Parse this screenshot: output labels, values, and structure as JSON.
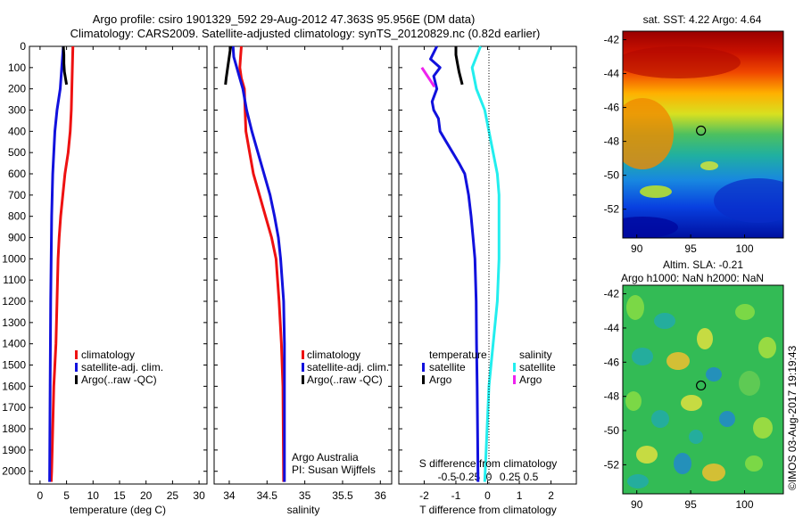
{
  "header": {
    "title_line1": "Argo profile: csiro 1901329_592 29-Aug-2012 47.363S 95.956E (DM data)",
    "title_line2": "Climatology: CARS2009. Satellite-adjusted climatology: synTS_20120829.nc (0.82d earlier)"
  },
  "colors": {
    "climatology": "#ee1111",
    "satellite": "#1111dd",
    "argo": "#000000",
    "satellite_salinity": "#22eeee",
    "argo_salinity": "#ee22ee"
  },
  "chart_data": [
    {
      "type": "line",
      "panel": "temperature",
      "xlabel": "temperature (deg C)",
      "xlim": [
        -2,
        31.5
      ],
      "xticks": [
        0,
        5,
        10,
        15,
        20,
        25,
        30
      ],
      "ylim": [
        0,
        2060
      ],
      "yticks": [
        0,
        100,
        200,
        300,
        400,
        500,
        600,
        700,
        800,
        900,
        1000,
        1100,
        1200,
        1300,
        1400,
        1500,
        1600,
        1700,
        1800,
        1900,
        2000
      ],
      "legend": [
        "climatology",
        "satellite-adj. clim.",
        "Argo(..raw -QC)"
      ],
      "series": [
        {
          "name": "climatology",
          "x": [
            6.2,
            6.1,
            6.0,
            5.9,
            5.7,
            5.3,
            4.7,
            4.3,
            3.9,
            3.6,
            3.4,
            3.2,
            3.0,
            2.8,
            2.6,
            2.4,
            2.2,
            2.1
          ],
          "y": [
            0,
            100,
            200,
            300,
            400,
            500,
            600,
            700,
            800,
            900,
            1000,
            1200,
            1400,
            1500,
            1600,
            1800,
            2000,
            2050
          ]
        },
        {
          "name": "satellite-adj. clim.",
          "x": [
            4.4,
            4.1,
            3.8,
            3.2,
            2.8,
            2.4,
            2.2,
            2.0,
            1.9,
            1.8
          ],
          "y": [
            0,
            100,
            200,
            300,
            400,
            600,
            800,
            1200,
            1600,
            2050
          ]
        },
        {
          "name": "Argo(..raw -QC)",
          "x": [
            4.4,
            4.5,
            4.5,
            4.6,
            4.8,
            5.0
          ],
          "y": [
            0,
            40,
            80,
            120,
            150,
            180
          ]
        }
      ]
    },
    {
      "type": "line",
      "panel": "salinity",
      "xlabel": "salinity",
      "xlim": [
        33.8,
        36.15
      ],
      "xticks": [
        34,
        34.5,
        35,
        35.5,
        36
      ],
      "xtick_labels": [
        "34",
        "34.5",
        "35",
        "35.5",
        "36"
      ],
      "ylim": [
        0,
        2060
      ],
      "legend": [
        "climatology",
        "satellite-adj. clim.",
        "Argo(..raw -QC)"
      ],
      "annotation": [
        "Argo Australia",
        "PI: Susan Wijffels"
      ],
      "series": [
        {
          "name": "climatology",
          "x": [
            34.16,
            34.15,
            34.14,
            34.16,
            34.2,
            34.21,
            34.22,
            34.27,
            34.32,
            34.4,
            34.48,
            34.56,
            34.62,
            34.66,
            34.69,
            34.71,
            34.72
          ],
          "y": [
            0,
            50,
            100,
            150,
            200,
            300,
            400,
            500,
            600,
            700,
            800,
            900,
            1000,
            1200,
            1400,
            1600,
            2050
          ]
        },
        {
          "name": "satellite-adj. clim.",
          "x": [
            34.05,
            34.06,
            34.1,
            34.14,
            34.18,
            34.23,
            34.3,
            34.38,
            34.46,
            34.54,
            34.6,
            34.65,
            34.68,
            34.72,
            34.73,
            34.73
          ],
          "y": [
            0,
            50,
            100,
            150,
            200,
            300,
            400,
            500,
            600,
            700,
            800,
            900,
            1000,
            1200,
            1400,
            2050
          ]
        },
        {
          "name": "Argo(..raw -QC)",
          "x": [
            34.02,
            34.0,
            33.98,
            33.96,
            33.95
          ],
          "y": [
            0,
            50,
            100,
            150,
            180
          ]
        }
      ]
    },
    {
      "type": "line",
      "panel": "difference",
      "xlabel": "T difference from climatology",
      "secondary_xlabel": "S difference from climatology",
      "xlim": [
        -2.8,
        2.8
      ],
      "xticks": [
        -2,
        -1,
        0,
        1,
        2
      ],
      "secondary_xticks": [
        -0.5,
        -0.25,
        0,
        0.25,
        0.5
      ],
      "secondary_xtick_labels": [
        "-0.5",
        "-0.25",
        "0",
        "0.25",
        "0.5"
      ],
      "ylim": [
        0,
        2060
      ],
      "legend_headers": [
        "temperature",
        "salinity"
      ],
      "legend": [
        "satellite",
        "Argo",
        "satellite",
        "Argo"
      ],
      "series": [
        {
          "name": "satellite",
          "quantity": "temperature",
          "x": [
            -1.6,
            -1.8,
            -1.5,
            -1.7,
            -1.6,
            -1.75,
            -1.7,
            -1.55,
            -1.5,
            -1.3,
            -1.1,
            -0.9,
            -0.72,
            -0.6,
            -0.52,
            -0.46,
            -0.4,
            -0.36,
            -0.35,
            -0.33,
            -0.3
          ],
          "y": [
            0,
            60,
            100,
            140,
            200,
            260,
            300,
            340,
            400,
            450,
            500,
            550,
            600,
            700,
            800,
            900,
            1000,
            1200,
            1400,
            1600,
            2050
          ]
        },
        {
          "name": "Argo",
          "quantity": "temperature",
          "x": [
            -1.0,
            -1.0,
            -0.95,
            -0.9,
            -0.85,
            -0.8
          ],
          "y": [
            0,
            40,
            80,
            120,
            150,
            180
          ]
        },
        {
          "name": "satellite",
          "quantity": "salinity",
          "x": [
            -0.1,
            -0.2,
            -0.15,
            -0.05,
            0.0,
            0.05,
            0.1,
            0.12,
            0.12,
            0.1,
            0.05,
            0.0,
            -0.05
          ],
          "y": [
            0,
            100,
            200,
            300,
            400,
            500,
            600,
            700,
            1000,
            1200,
            1400,
            1600,
            2050
          ]
        },
        {
          "name": "Argo",
          "quantity": "salinity",
          "x": [
            -0.8,
            -0.75,
            -0.7,
            -0.65
          ],
          "y": [
            100,
            130,
            160,
            190
          ]
        }
      ]
    },
    {
      "type": "heatmap",
      "panel": "sst_map",
      "title": "sat. SST: 4.22 Argo: 4.64",
      "xlim": [
        88.7,
        103.6
      ],
      "ylim": [
        -53.7,
        -41.5
      ],
      "xticks": [
        90,
        95,
        100
      ],
      "yticks": [
        -42,
        -44,
        -46,
        -48,
        -50,
        -52
      ],
      "marker": {
        "lon": 95.956,
        "lat": -47.363
      }
    },
    {
      "type": "heatmap",
      "panel": "sla_map",
      "title": "Altim. SLA: -0.21",
      "subtitle": "Argo h1000: NaN h2000: NaN",
      "xlim": [
        88.7,
        103.6
      ],
      "ylim": [
        -53.7,
        -41.5
      ],
      "xticks": [
        90,
        95,
        100
      ],
      "yticks": [
        -42,
        -44,
        -46,
        -48,
        -50,
        -52
      ],
      "marker": {
        "lon": 95.956,
        "lat": -47.363
      }
    }
  ],
  "footer": {
    "credit": "©IMOS 03-Aug-2017 19:19:43"
  }
}
